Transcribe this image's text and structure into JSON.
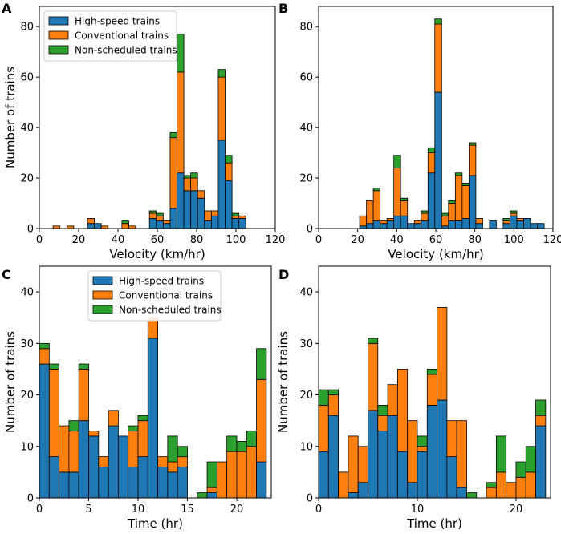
{
  "colors": {
    "high": "#1f77b4",
    "conv": "#ff7f0e",
    "non": "#2ca02c"
  },
  "legend": [
    "High-speed trains",
    "Conventional trains",
    "Non-scheduled trains"
  ],
  "chart_data": [
    {
      "type": "bar",
      "stacked": true,
      "panel": "A",
      "xlabel": "Velocity (km/hr)",
      "ylabel": "Number of trains",
      "xlim": [
        0,
        120
      ],
      "ylim": [
        0,
        88
      ],
      "xticks": [
        0,
        20,
        40,
        60,
        80,
        100,
        120
      ],
      "yticks": [
        0,
        20,
        40,
        60,
        80
      ],
      "bin_width": 3.5,
      "legend": true,
      "legend_position": "top-left",
      "x": [
        8.75,
        15.75,
        26.25,
        29.75,
        33.25,
        43.75,
        47.25,
        57.75,
        61.25,
        64.75,
        68.25,
        71.75,
        75.25,
        78.75,
        82.25,
        85.75,
        89.25,
        92.75,
        96.25,
        99.75,
        103.25
      ],
      "series": [
        {
          "name": "High-speed trains",
          "values": [
            0,
            0,
            2,
            2,
            0,
            0,
            0,
            4,
            3,
            2,
            8,
            22,
            15,
            15,
            12,
            3,
            5,
            35,
            19,
            4,
            4
          ]
        },
        {
          "name": "Conventional trains",
          "values": [
            1,
            1,
            2,
            0,
            1,
            2,
            1,
            2,
            2,
            1,
            28,
            40,
            5,
            5,
            3,
            4,
            2,
            25,
            7,
            1,
            1
          ]
        },
        {
          "name": "Non-scheduled trains",
          "values": [
            0,
            0,
            0,
            0,
            0,
            1,
            0,
            1,
            1,
            0,
            2,
            15,
            1,
            2,
            0,
            0,
            0,
            3,
            3,
            1,
            0
          ]
        }
      ]
    },
    {
      "type": "bar",
      "stacked": true,
      "panel": "B",
      "xlabel": "Velocity (km/hr)",
      "ylabel": "",
      "xlim": [
        0,
        120
      ],
      "ylim": [
        0,
        88
      ],
      "xticks": [
        0,
        20,
        40,
        60,
        80,
        100,
        120
      ],
      "yticks": [
        0,
        20,
        40,
        60,
        80
      ],
      "bin_width": 3.5,
      "legend": false,
      "x": [
        22.75,
        26.25,
        29.75,
        33.25,
        36.75,
        40.25,
        43.75,
        47.25,
        50.75,
        54.25,
        57.75,
        61.25,
        64.75,
        68.25,
        71.75,
        75.25,
        78.75,
        82.25,
        89.25,
        96.25,
        99.75,
        103.25,
        106.75,
        110.25,
        113.75
      ],
      "series": [
        {
          "name": "High-speed trains",
          "values": [
            1,
            2,
            3,
            2,
            3,
            5,
            5,
            2,
            2,
            3,
            22,
            54,
            1,
            3,
            3,
            4,
            21,
            2,
            3,
            2,
            5,
            3,
            4,
            2,
            2
          ]
        },
        {
          "name": "Conventional trains",
          "values": [
            4,
            9,
            12,
            1,
            1,
            19,
            6,
            0,
            1,
            3,
            8,
            27,
            4,
            7,
            18,
            13,
            12,
            2,
            0,
            1,
            1,
            1,
            0,
            0,
            0
          ]
        },
        {
          "name": "Non-scheduled trains",
          "values": [
            0,
            0,
            1,
            0,
            0,
            5,
            1,
            0,
            0,
            1,
            2,
            2,
            1,
            1,
            1,
            1,
            1,
            0,
            0,
            1,
            1,
            0,
            0,
            0,
            0
          ]
        }
      ]
    },
    {
      "type": "bar",
      "stacked": true,
      "panel": "C",
      "xlabel": "Time (hr)",
      "ylabel": "Number of trains",
      "xlim": [
        0,
        23.5
      ],
      "ylim": [
        0,
        45
      ],
      "xticks": [
        0,
        5,
        10,
        15,
        20
      ],
      "yticks": [
        0,
        10,
        20,
        30,
        40
      ],
      "bin_width": 1,
      "legend": true,
      "legend_position": "top-center",
      "x": [
        0.5,
        1.5,
        2.5,
        3.5,
        4.5,
        5.5,
        6.5,
        7.5,
        8.5,
        9.5,
        10.5,
        11.5,
        12.5,
        13.5,
        14.5,
        15.5,
        16.5,
        17.5,
        18.5,
        19.5,
        20.5,
        21.5,
        22.5
      ],
      "series": [
        {
          "name": "High-speed trains",
          "values": [
            26,
            8,
            5,
            5,
            15,
            12,
            6,
            14,
            12,
            6,
            8,
            31,
            6,
            5,
            6,
            0,
            0,
            1,
            0,
            0,
            0,
            0,
            7
          ]
        },
        {
          "name": "Conventional trains",
          "values": [
            3,
            17,
            9,
            8,
            10,
            1,
            2,
            3,
            0,
            7,
            7,
            4,
            2,
            2,
            2,
            0,
            0,
            1,
            7,
            9,
            9,
            10,
            16
          ]
        },
        {
          "name": "Non-scheduled trains",
          "values": [
            1,
            1,
            0,
            2,
            1,
            0,
            0,
            0,
            0,
            1,
            1,
            0,
            0,
            5,
            2,
            0,
            1,
            5,
            0,
            3,
            2,
            3,
            6
          ]
        }
      ]
    },
    {
      "type": "bar",
      "stacked": true,
      "panel": "D",
      "xlabel": "Time (hr)",
      "ylabel": "Number of trains",
      "xlim": [
        0,
        23.5
      ],
      "ylim": [
        0,
        45
      ],
      "xticks": [
        0,
        10,
        20
      ],
      "yticks": [
        0,
        10,
        20,
        30,
        40
      ],
      "bin_width": 1,
      "legend": false,
      "x": [
        0.5,
        1.5,
        2.5,
        3.5,
        4.5,
        5.5,
        6.5,
        7.5,
        8.5,
        9.5,
        10.5,
        11.5,
        12.5,
        13.5,
        14.5,
        15.5,
        16.5,
        17.5,
        18.5,
        19.5,
        20.5,
        21.5,
        22.5
      ],
      "series": [
        {
          "name": "High-speed trains",
          "values": [
            9,
            16,
            0,
            1,
            3,
            17,
            13,
            16,
            9,
            3,
            9,
            18,
            19,
            8,
            2,
            0,
            0,
            0,
            0,
            0,
            0,
            0,
            14
          ]
        },
        {
          "name": "Conventional trains",
          "values": [
            9,
            4,
            5,
            11,
            7,
            13,
            3,
            6,
            16,
            12,
            1,
            6,
            18,
            7,
            13,
            0,
            0,
            2,
            5,
            3,
            4,
            5,
            2
          ]
        },
        {
          "name": "Non-scheduled trains",
          "values": [
            3,
            1,
            0,
            0,
            0,
            1,
            2,
            0,
            0,
            0,
            2,
            1,
            0,
            0,
            0,
            1,
            0,
            1,
            7,
            0,
            3,
            5,
            3
          ]
        }
      ]
    }
  ]
}
